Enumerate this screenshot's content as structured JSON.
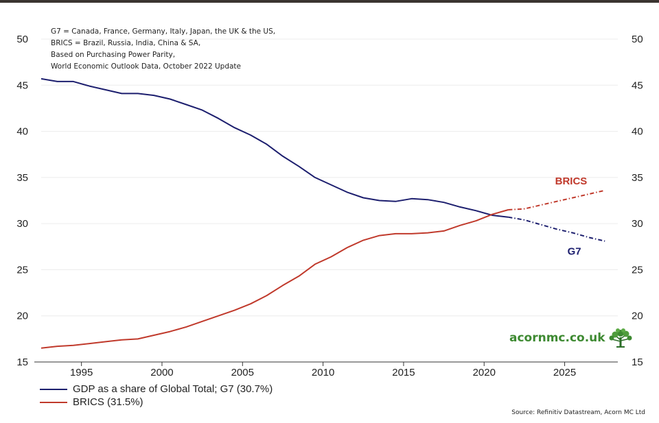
{
  "notes": [
    "G7 = Canada, France, Germany, Italy, Japan, the UK & the US,",
    "BRICS = Brazil, Russia, India, China & SA,",
    "Based on Purchasing Power Parity,",
    "World Economic Outlook Data, October 2022 Update"
  ],
  "legend": [
    {
      "label": "GDP as a share of Global Total; G7 (30.7%)",
      "color": "#1c1e6e"
    },
    {
      "label": "BRICS (31.5%)",
      "color": "#c0392b"
    }
  ],
  "source": "Source: Refinitiv Datastream, Acorn MC Ltd",
  "logo": {
    "text": "acornmc.co.uk",
    "icon": "tree-icon"
  },
  "chart_data": {
    "type": "line",
    "title": "",
    "xlabel": "",
    "ylabel": "",
    "xlim": [
      1992.5,
      2028.3
    ],
    "ylim": [
      15,
      50
    ],
    "x_ticks": [
      1995,
      2000,
      2005,
      2010,
      2015,
      2020,
      2025
    ],
    "y_ticks": [
      15,
      20,
      25,
      30,
      35,
      40,
      45,
      50
    ],
    "y_axis_both_sides": true,
    "grid": true,
    "legend_position": "bottom-left",
    "forecast_from": 2022,
    "series": [
      {
        "name": "G7",
        "color": "#1c1e6e",
        "points": [
          [
            1992.5,
            45.7
          ],
          [
            1993.5,
            45.4
          ],
          [
            1994.5,
            45.4
          ],
          [
            1995.5,
            44.9
          ],
          [
            1996.5,
            44.5
          ],
          [
            1997.5,
            44.1
          ],
          [
            1998.5,
            44.1
          ],
          [
            1999.5,
            43.9
          ],
          [
            2000.5,
            43.5
          ],
          [
            2001.5,
            42.9
          ],
          [
            2002.5,
            42.3
          ],
          [
            2003.5,
            41.4
          ],
          [
            2004.5,
            40.4
          ],
          [
            2005.5,
            39.6
          ],
          [
            2006.5,
            38.6
          ],
          [
            2007.5,
            37.3
          ],
          [
            2008.5,
            36.2
          ],
          [
            2009.5,
            35.0
          ],
          [
            2010.5,
            34.2
          ],
          [
            2011.5,
            33.4
          ],
          [
            2012.5,
            32.8
          ],
          [
            2013.5,
            32.5
          ],
          [
            2014.5,
            32.4
          ],
          [
            2015.5,
            32.7
          ],
          [
            2016.5,
            32.6
          ],
          [
            2017.5,
            32.3
          ],
          [
            2018.5,
            31.8
          ],
          [
            2019.5,
            31.4
          ],
          [
            2020.5,
            30.9
          ],
          [
            2021.5,
            30.7
          ],
          [
            2022.5,
            30.4
          ],
          [
            2023.5,
            29.9
          ],
          [
            2024.5,
            29.4
          ],
          [
            2025.5,
            29.0
          ],
          [
            2026.5,
            28.5
          ],
          [
            2027.5,
            28.1
          ]
        ]
      },
      {
        "name": "BRICS",
        "color": "#c0392b",
        "points": [
          [
            1992.5,
            16.5
          ],
          [
            1993.5,
            16.7
          ],
          [
            1994.5,
            16.8
          ],
          [
            1995.5,
            17.0
          ],
          [
            1996.5,
            17.2
          ],
          [
            1997.5,
            17.4
          ],
          [
            1998.5,
            17.5
          ],
          [
            1999.5,
            17.9
          ],
          [
            2000.5,
            18.3
          ],
          [
            2001.5,
            18.8
          ],
          [
            2002.5,
            19.4
          ],
          [
            2003.5,
            20.0
          ],
          [
            2004.5,
            20.6
          ],
          [
            2005.5,
            21.3
          ],
          [
            2006.5,
            22.2
          ],
          [
            2007.5,
            23.3
          ],
          [
            2008.5,
            24.3
          ],
          [
            2009.5,
            25.6
          ],
          [
            2010.5,
            26.4
          ],
          [
            2011.5,
            27.4
          ],
          [
            2012.5,
            28.2
          ],
          [
            2013.5,
            28.7
          ],
          [
            2014.5,
            28.9
          ],
          [
            2015.5,
            28.9
          ],
          [
            2016.5,
            29.0
          ],
          [
            2017.5,
            29.2
          ],
          [
            2018.5,
            29.8
          ],
          [
            2019.5,
            30.3
          ],
          [
            2020.5,
            31.0
          ],
          [
            2021.5,
            31.5
          ],
          [
            2022.5,
            31.6
          ],
          [
            2023.5,
            32.0
          ],
          [
            2024.5,
            32.4
          ],
          [
            2025.5,
            32.8
          ],
          [
            2026.5,
            33.2
          ],
          [
            2027.5,
            33.6
          ]
        ]
      }
    ],
    "annotations": [
      {
        "text": "BRICS",
        "x": 2025.4,
        "y": 34.6,
        "color": "#c0392b"
      },
      {
        "text": "G7",
        "x": 2025.6,
        "y": 27.0,
        "color": "#1c1e6e"
      }
    ]
  }
}
